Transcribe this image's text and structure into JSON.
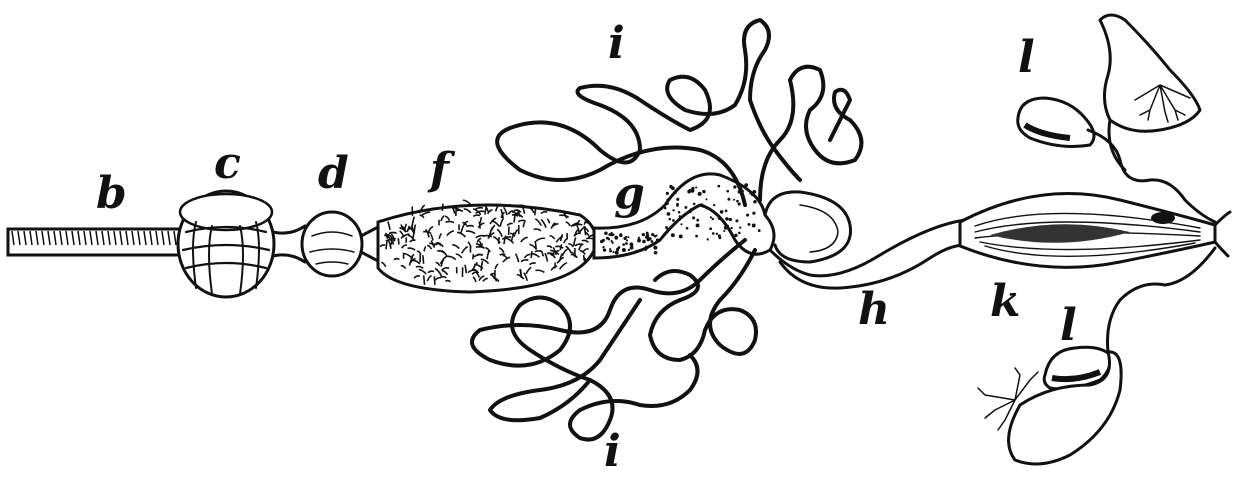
{
  "figure": {
    "labels": {
      "b": "b",
      "c": "c",
      "d": "d",
      "f": "f",
      "g": "g",
      "h": "h",
      "i_top": "i",
      "i_bottom": "i",
      "k": "k",
      "l_top": "l",
      "l_bottom": "l"
    },
    "ink_color": "#111111",
    "background_color": "#ffffff"
  }
}
